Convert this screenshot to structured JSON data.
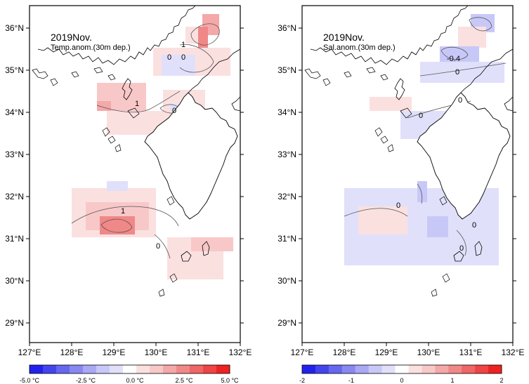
{
  "axes": {
    "lat_ticks": [
      "36°N",
      "35°N",
      "34°N",
      "33°N",
      "32°N",
      "31°N",
      "30°N",
      "29°N"
    ],
    "lon_ticks": [
      "127°E",
      "128°E",
      "129°E",
      "130°E",
      "131°E",
      "132°E"
    ]
  },
  "left_panel": {
    "title": "2019Nov.",
    "subtitle": "Temp.anom.(30m dep.)",
    "contour_labels": [
      "1",
      "0",
      "0",
      "1",
      "0",
      "1",
      "0"
    ],
    "colorbar": {
      "labels": [
        "-5.0 °C",
        "-2.5 °C",
        "0.0 °C",
        "2.5 °C",
        "5.0 °C"
      ],
      "colors": [
        "#2222ee",
        "#4444ee",
        "#6666ee",
        "#8888f0",
        "#a8a8f4",
        "#c8c8f8",
        "#e0e0fb",
        "#ffffff",
        "#fbe0e0",
        "#f8c8c8",
        "#f4a8a8",
        "#f08888",
        "#ee6666",
        "#ee4444",
        "#ee2222"
      ]
    }
  },
  "right_panel": {
    "title": "2019Nov.",
    "subtitle": "Sal.anom.(30m dep.)",
    "contour_labels": [
      "-0.4",
      "0",
      "0",
      "0",
      "0",
      "0",
      "0"
    ],
    "colorbar": {
      "labels": [
        "-2",
        "-1",
        "0",
        "1",
        "2"
      ],
      "colors": [
        "#2222ee",
        "#4444ee",
        "#6666ee",
        "#8888f0",
        "#a8a8f4",
        "#c8c8f8",
        "#e0e0fb",
        "#ffffff",
        "#fbe0e0",
        "#f8c8c8",
        "#f4a8a8",
        "#f08888",
        "#ee6666",
        "#ee4444",
        "#ee2222"
      ]
    }
  }
}
